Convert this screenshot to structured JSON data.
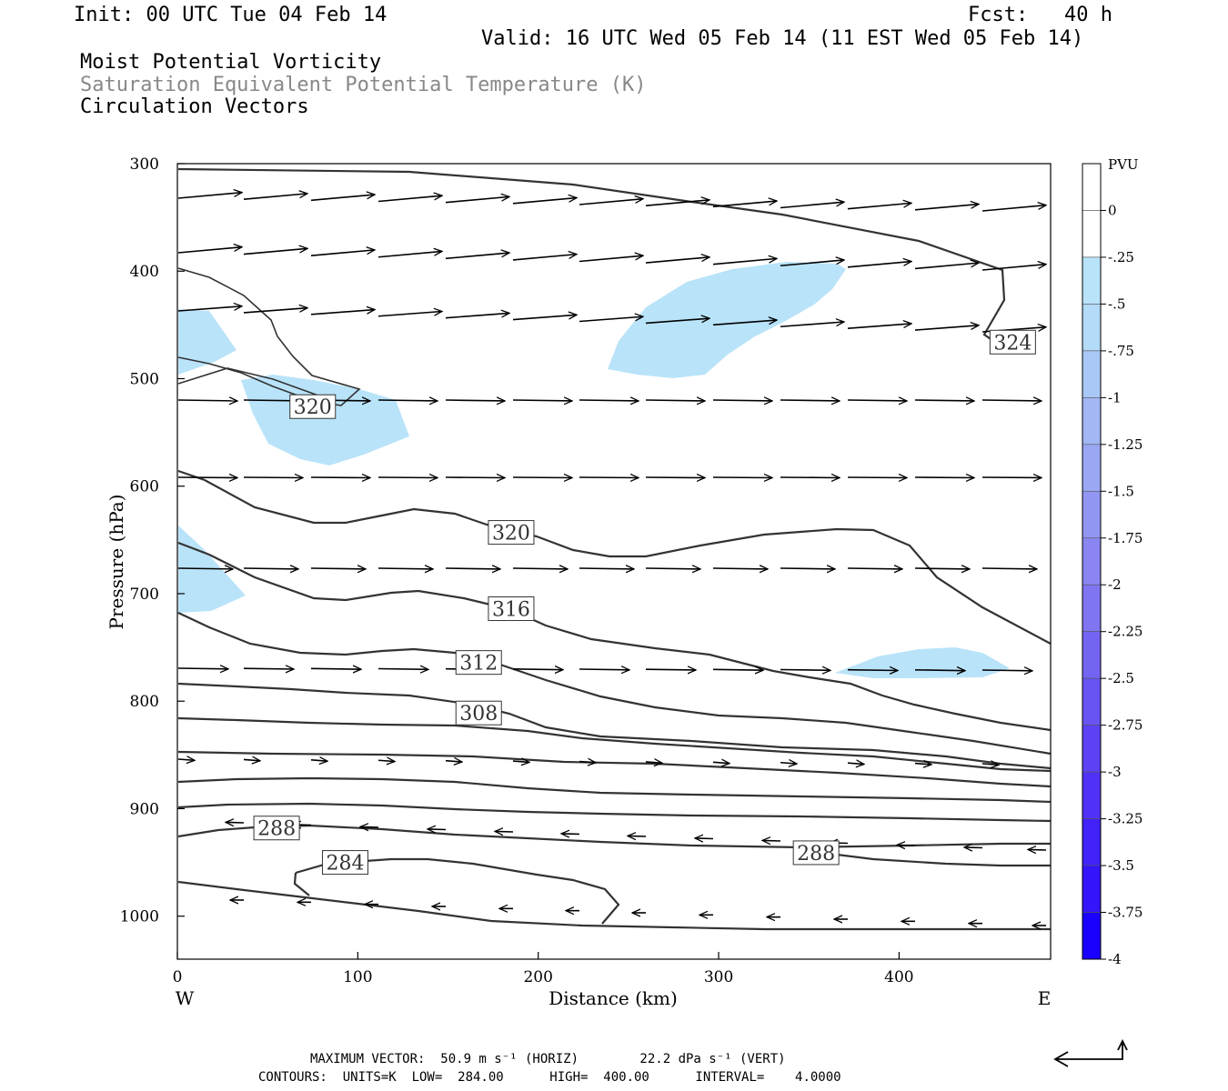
{
  "header": {
    "init": "Init: 00 UTC Tue 04 Feb 14",
    "fcst": "Fcst:   40 h",
    "valid": "Valid: 16 UTC Wed 05 Feb 14 (11 EST Wed 05 Feb 14)",
    "field1": "Moist Potential Vorticity",
    "field2": "Saturation Equivalent Potential Temperature (K)",
    "field3": "Circulation Vectors"
  },
  "footer": {
    "max_vector": "MAXIMUM VECTOR:  50.9 m s⁻¹ (HORIZ)        22.2 dPa s⁻¹ (VERT)",
    "contours": "CONTOURS:  UNITS=K  LOW=  284.00      HIGH=  400.00      INTERVAL=    4.0000"
  },
  "colors": {
    "mpv_fill": "#b9e3f9",
    "contour": "#333333",
    "vector": "#000000"
  },
  "chart_data": {
    "type": "contour",
    "xlabel": "Distance (km)",
    "ylabel": "Pressure (hPa)",
    "xlim": [
      0,
      484
    ],
    "ylim": [
      1040,
      300
    ],
    "x_ticks": [
      0,
      100,
      200,
      300,
      400
    ],
    "y_ticks": [
      300,
      400,
      500,
      600,
      700,
      800,
      900,
      1000
    ],
    "x_end_labels": {
      "left": "W",
      "right": "E"
    },
    "contour_labels": [
      {
        "text": "320",
        "x": 75,
        "p": 526
      },
      {
        "text": "320",
        "x": 185,
        "p": 643
      },
      {
        "text": "316",
        "x": 185,
        "p": 714
      },
      {
        "text": "312",
        "x": 167,
        "p": 764
      },
      {
        "text": "308",
        "x": 167,
        "p": 811
      },
      {
        "text": "288",
        "x": 55,
        "p": 918
      },
      {
        "text": "284",
        "x": 93,
        "p": 950
      },
      {
        "text": "288",
        "x": 354,
        "p": 941
      },
      {
        "text": "324",
        "x": 463,
        "p": 466
      }
    ],
    "colorbar": {
      "title": "PVU",
      "labels": [
        "0",
        "-.25",
        "-.5",
        "-.75",
        "-1",
        "-1.25",
        "-1.5",
        "-1.75",
        "-2",
        "-2.25",
        "-2.5",
        "-2.75",
        "-3",
        "-3.25",
        "-3.5",
        "-3.75",
        "-4"
      ],
      "colors": [
        "#ffffff",
        "#ffffff",
        "#b9e3f9",
        "#b3daf7",
        "#aac8f5",
        "#a2b7f4",
        "#9aa7f3",
        "#9296f2",
        "#8a85f1",
        "#8075f1",
        "#7464f2",
        "#6853f3",
        "#5c42f4",
        "#4f32f6",
        "#4122f8",
        "#3414fa",
        "#1a00ff"
      ]
    },
    "contour_units": "K",
    "contour_low": 284.0,
    "contour_high": 400.0,
    "contour_interval": 4.0,
    "max_vector_horiz_m_s": 50.9,
    "max_vector_vert_dPa_s": 22.2
  }
}
